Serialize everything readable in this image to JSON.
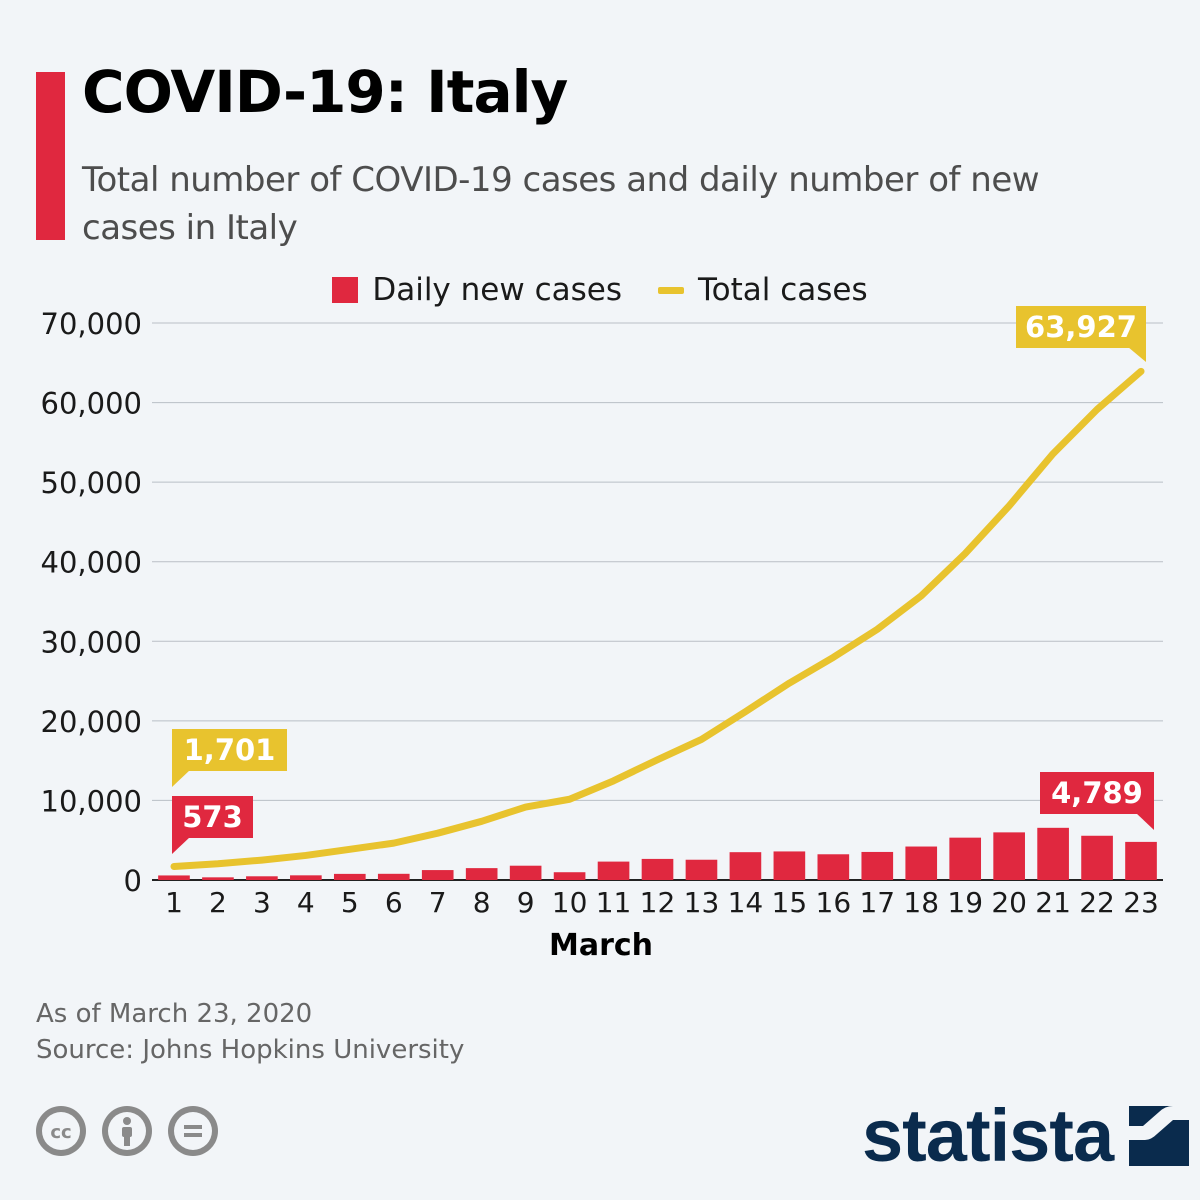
{
  "header": {
    "title": "COVID-19: Italy",
    "subtitle": "Total number of COVID-19 cases and daily number of new cases in Italy"
  },
  "legend": {
    "bars_label": "Daily new cases",
    "line_label": "Total cases"
  },
  "colors": {
    "accent": "#e0283f",
    "bars": "#e0283f",
    "line": "#e8c32e",
    "brand": "#0a2b4d"
  },
  "chart_data": {
    "type": "bar+line",
    "xlabel": "March",
    "ylabel": "",
    "ylim": [
      0,
      70000
    ],
    "yticks": [
      0,
      10000,
      20000,
      30000,
      40000,
      50000,
      60000,
      70000
    ],
    "ytick_labels": [
      "0",
      "10,000",
      "20,000",
      "30,000",
      "40,000",
      "50,000",
      "60,000",
      "70,000"
    ],
    "grid": true,
    "categories": [
      "1",
      "2",
      "3",
      "4",
      "5",
      "6",
      "7",
      "8",
      "9",
      "10",
      "11",
      "12",
      "13",
      "14",
      "15",
      "16",
      "17",
      "18",
      "19",
      "20",
      "21",
      "22",
      "23"
    ],
    "series": [
      {
        "name": "Daily new cases",
        "kind": "bar",
        "values": [
          573,
          335,
          466,
          587,
          769,
          778,
          1247,
          1492,
          1797,
          977,
          2313,
          2651,
          2547,
          3497,
          3590,
          3233,
          3526,
          4207,
          5322,
          5986,
          6557,
          5560,
          4789
        ]
      },
      {
        "name": "Total cases",
        "kind": "line",
        "values": [
          1701,
          2036,
          2502,
          3089,
          3858,
          4636,
          5883,
          7375,
          9172,
          10149,
          12462,
          15113,
          17660,
          21157,
          24747,
          27980,
          31506,
          35713,
          41035,
          47021,
          53578,
          59138,
          63927
        ]
      }
    ],
    "annotations": [
      {
        "series": "Total cases",
        "index": 0,
        "text": "1,701"
      },
      {
        "series": "Daily new cases",
        "index": 0,
        "text": "573"
      },
      {
        "series": "Total cases",
        "index": 22,
        "text": "63,927"
      },
      {
        "series": "Daily new cases",
        "index": 22,
        "text": "4,789"
      }
    ]
  },
  "footer": {
    "as_of": "As of March 23, 2020",
    "source": "Source: Johns Hopkins University"
  },
  "license_icons": [
    "cc-icon",
    "attribution-icon",
    "no-derivatives-icon"
  ],
  "brand": {
    "name": "statista",
    "logo_icon": "statista-logo-icon"
  }
}
